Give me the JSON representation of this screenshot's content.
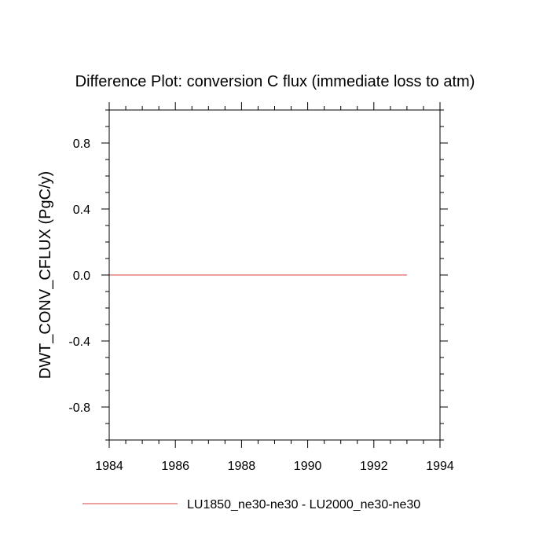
{
  "chart_data": {
    "type": "line",
    "title": "Difference Plot: conversion C flux (immediate loss to atm)",
    "xlabel": "",
    "ylabel": "DWT_CONV_CFLUX  (PgC/y)",
    "xlim": [
      1984,
      1994
    ],
    "ylim": [
      -1.0,
      1.0
    ],
    "x_major_ticks": [
      1984,
      1986,
      1988,
      1990,
      1992,
      1994
    ],
    "x_tick_labels": [
      "1984",
      "1986",
      "1988",
      "1990",
      "1992",
      "1994"
    ],
    "x_minor_step": 0.5,
    "y_major_ticks": [
      -0.8,
      -0.4,
      0.0,
      0.4,
      0.8
    ],
    "y_tick_labels": [
      "-0.8",
      "-0.4",
      "0.0",
      "0.4",
      "0.8"
    ],
    "y_minor_step": 0.1,
    "grid": false,
    "legend_position": "bottom",
    "series": [
      {
        "name": "LU1850_ne30-ne30 - LU2000_ne30-ne30",
        "color": "#e06666",
        "x": [
          1984,
          1993
        ],
        "y": [
          0.0,
          0.0
        ]
      }
    ]
  }
}
